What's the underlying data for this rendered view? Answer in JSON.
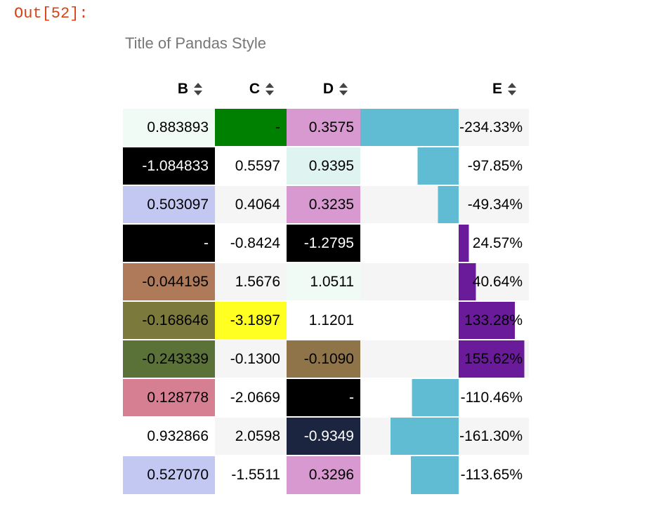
{
  "output_prompt": "Out[52]:",
  "caption": "Title of Pandas Style",
  "columns": [
    "B",
    "C",
    "D",
    "E"
  ],
  "colors": {
    "bar_negative": "#5fbcd3",
    "bar_positive": "#6a1b9a",
    "prompt": "#d84315"
  },
  "rows": [
    {
      "B": {
        "text": "0.883893",
        "bg": "#f0fbf5",
        "fg": "#000000"
      },
      "C": {
        "text": "-",
        "bg": "#008000",
        "fg": "#000000"
      },
      "D": {
        "text": "0.3575",
        "bg": "#d898d0",
        "fg": "#000000"
      },
      "E": {
        "text": "-234.33%",
        "value": -234.33
      }
    },
    {
      "B": {
        "text": "-1.084833",
        "bg": "#000000",
        "fg": "#ffffff"
      },
      "C": {
        "text": "0.5597",
        "bg": null,
        "fg": "#000000"
      },
      "D": {
        "text": "0.9395",
        "bg": "#dff3f0",
        "fg": "#000000"
      },
      "E": {
        "text": "-97.85%",
        "value": -97.85
      }
    },
    {
      "B": {
        "text": "0.503097",
        "bg": "#c3c8f2",
        "fg": "#000000"
      },
      "C": {
        "text": "0.4064",
        "bg": null,
        "fg": "#000000"
      },
      "D": {
        "text": "0.3235",
        "bg": "#d898d0",
        "fg": "#000000"
      },
      "E": {
        "text": "-49.34%",
        "value": -49.34
      }
    },
    {
      "B": {
        "text": "-",
        "bg": "#000000",
        "fg": "#ffffff"
      },
      "C": {
        "text": "-0.8424",
        "bg": null,
        "fg": "#000000"
      },
      "D": {
        "text": "-1.2795",
        "bg": "#000000",
        "fg": "#ffffff"
      },
      "E": {
        "text": "24.57%",
        "value": 24.57
      }
    },
    {
      "B": {
        "text": "-0.044195",
        "bg": "#ae7a5a",
        "fg": "#000000"
      },
      "C": {
        "text": "1.5676",
        "bg": null,
        "fg": "#000000"
      },
      "D": {
        "text": "1.0511",
        "bg": "#f0fbf5",
        "fg": "#000000"
      },
      "E": {
        "text": "40.64%",
        "value": 40.64
      }
    },
    {
      "B": {
        "text": "-0.168646",
        "bg": "#7b7a3c",
        "fg": "#000000"
      },
      "C": {
        "text": "-3.1897",
        "bg": "#ffff22",
        "fg": "#000000"
      },
      "D": {
        "text": "1.1201",
        "bg": null,
        "fg": "#000000"
      },
      "E": {
        "text": "133.28%",
        "value": 133.28
      }
    },
    {
      "B": {
        "text": "-0.243339",
        "bg": "#5a7238",
        "fg": "#000000"
      },
      "C": {
        "text": "-0.1300",
        "bg": null,
        "fg": "#000000"
      },
      "D": {
        "text": "-0.1090",
        "bg": "#8e7448",
        "fg": "#000000"
      },
      "E": {
        "text": "155.62%",
        "value": 155.62
      }
    },
    {
      "B": {
        "text": "0.128778",
        "bg": "#d77f92",
        "fg": "#000000"
      },
      "C": {
        "text": "-2.0669",
        "bg": null,
        "fg": "#000000"
      },
      "D": {
        "text": "-",
        "bg": "#000000",
        "fg": "#ffffff"
      },
      "E": {
        "text": "-110.46%",
        "value": -110.46
      }
    },
    {
      "B": {
        "text": "0.932866",
        "bg": "#ffffff",
        "fg": "#000000"
      },
      "C": {
        "text": "2.0598",
        "bg": null,
        "fg": "#000000"
      },
      "D": {
        "text": "-0.9349",
        "bg": "#1c2540",
        "fg": "#ffffff"
      },
      "E": {
        "text": "-161.30%",
        "value": -161.3
      }
    },
    {
      "B": {
        "text": "0.527070",
        "bg": "#c3c8f2",
        "fg": "#000000"
      },
      "C": {
        "text": "-1.5511",
        "bg": null,
        "fg": "#000000"
      },
      "D": {
        "text": "0.3296",
        "bg": "#d898d0",
        "fg": "#000000"
      },
      "E": {
        "text": "-113.65%",
        "value": -113.65
      }
    }
  ]
}
